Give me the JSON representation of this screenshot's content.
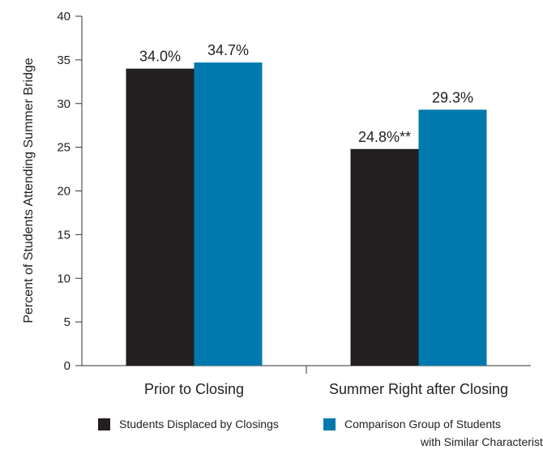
{
  "chart_data": {
    "type": "bar",
    "title": "",
    "xlabel": "",
    "ylabel": "Percent of Students Attending Summer Bridge",
    "ylim": [
      0,
      40
    ],
    "yticks": [
      0,
      5,
      10,
      15,
      20,
      25,
      30,
      35,
      40
    ],
    "categories": [
      "Prior to Closing",
      "Summer Right after Closing"
    ],
    "series": [
      {
        "name": "Students Displaced by Closings",
        "values": [
          34.0,
          24.8
        ],
        "labels": [
          "34.0%",
          "24.8%**"
        ],
        "color": "#231f20"
      },
      {
        "name": "Comparison Group of Students with Similar Characteristics",
        "name_lines": [
          "Comparison Group of Students",
          "with Similar Characteristics"
        ],
        "values": [
          34.7,
          29.3
        ],
        "labels": [
          "34.7%",
          "29.3%"
        ],
        "color": "#0079ae"
      }
    ],
    "grid": false,
    "legend_position": "bottom"
  }
}
